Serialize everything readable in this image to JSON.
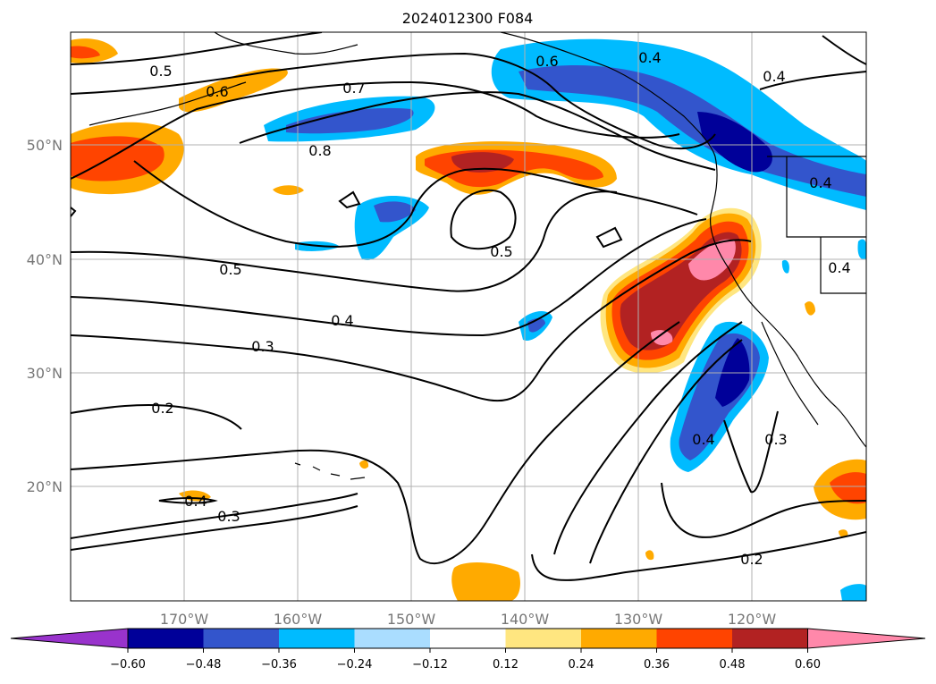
{
  "title": "2024012300 F084",
  "longitude_labels": [
    "170°W",
    "160°W",
    "150°W",
    "140°W",
    "130°W",
    "120°W"
  ],
  "latitude_labels": [
    "50°N",
    "40°N",
    "30°N",
    "20°N"
  ],
  "colorbar": {
    "tick_labels": [
      "−0.60",
      "−0.48",
      "−0.36",
      "−0.24",
      "−0.12",
      "0.12",
      "0.24",
      "0.36",
      "0.48",
      "0.60"
    ],
    "levels": [
      -0.6,
      -0.48,
      -0.36,
      -0.24,
      -0.12,
      0.12,
      0.24,
      0.36,
      0.48,
      0.6
    ],
    "colors": [
      "#9933cc",
      "#000099",
      "#3355cc",
      "#00bbff",
      "#aaddff",
      "#ffffff",
      "#ffe680",
      "#ffaa00",
      "#ff4400",
      "#b22222",
      "#ff88aa"
    ]
  },
  "contour_labels": [
    "0.5",
    "0.6",
    "0.7",
    "0.8",
    "0.5",
    "0.4",
    "0.3",
    "0.2",
    "0.3",
    "0.4",
    "0.5",
    "0.6",
    "0.4",
    "0.4",
    "0.4",
    "0.4",
    "0.3",
    "0.2",
    "0.4"
  ]
}
